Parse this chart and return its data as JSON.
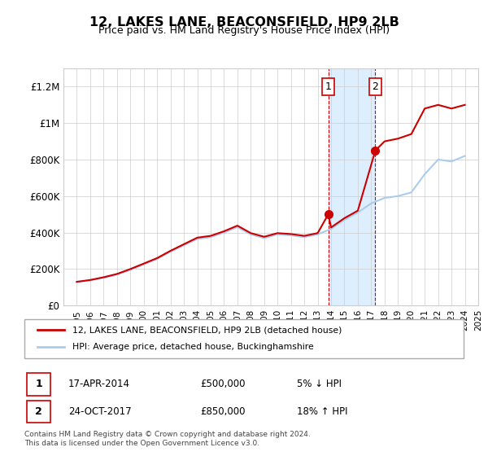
{
  "title": "12, LAKES LANE, BEACONSFIELD, HP9 2LB",
  "subtitle": "Price paid vs. HM Land Registry's House Price Index (HPI)",
  "ylabel_ticks": [
    "£0",
    "£200K",
    "£400K",
    "£600K",
    "£800K",
    "£1M",
    "£1.2M"
  ],
  "ylim": [
    0,
    1300000
  ],
  "yticks": [
    0,
    200000,
    400000,
    600000,
    800000,
    1000000,
    1200000
  ],
  "background_color": "#ffffff",
  "plot_bg_color": "#ffffff",
  "grid_color": "#cccccc",
  "line1_color": "#cc0000",
  "line2_color": "#aaccee",
  "shade_color": "#ddeeff",
  "vline_color": "#cc0000",
  "marker1_color": "#cc0000",
  "sale1_year": 2014.29,
  "sale1_price": 500000,
  "sale2_year": 2017.81,
  "sale2_price": 850000,
  "annotation1_label": "1",
  "annotation2_label": "2",
  "legend_label1": "12, LAKES LANE, BEACONSFIELD, HP9 2LB (detached house)",
  "legend_label2": "HPI: Average price, detached house, Buckinghamshire",
  "table_row1": [
    "1",
    "17-APR-2014",
    "£500,000",
    "5% ↓ HPI"
  ],
  "table_row2": [
    "2",
    "24-OCT-2017",
    "£850,000",
    "18% ↑ HPI"
  ],
  "footer": "Contains HM Land Registry data © Crown copyright and database right 2024.\nThis data is licensed under the Open Government Licence v3.0.",
  "xstart": 1995,
  "xend": 2025
}
